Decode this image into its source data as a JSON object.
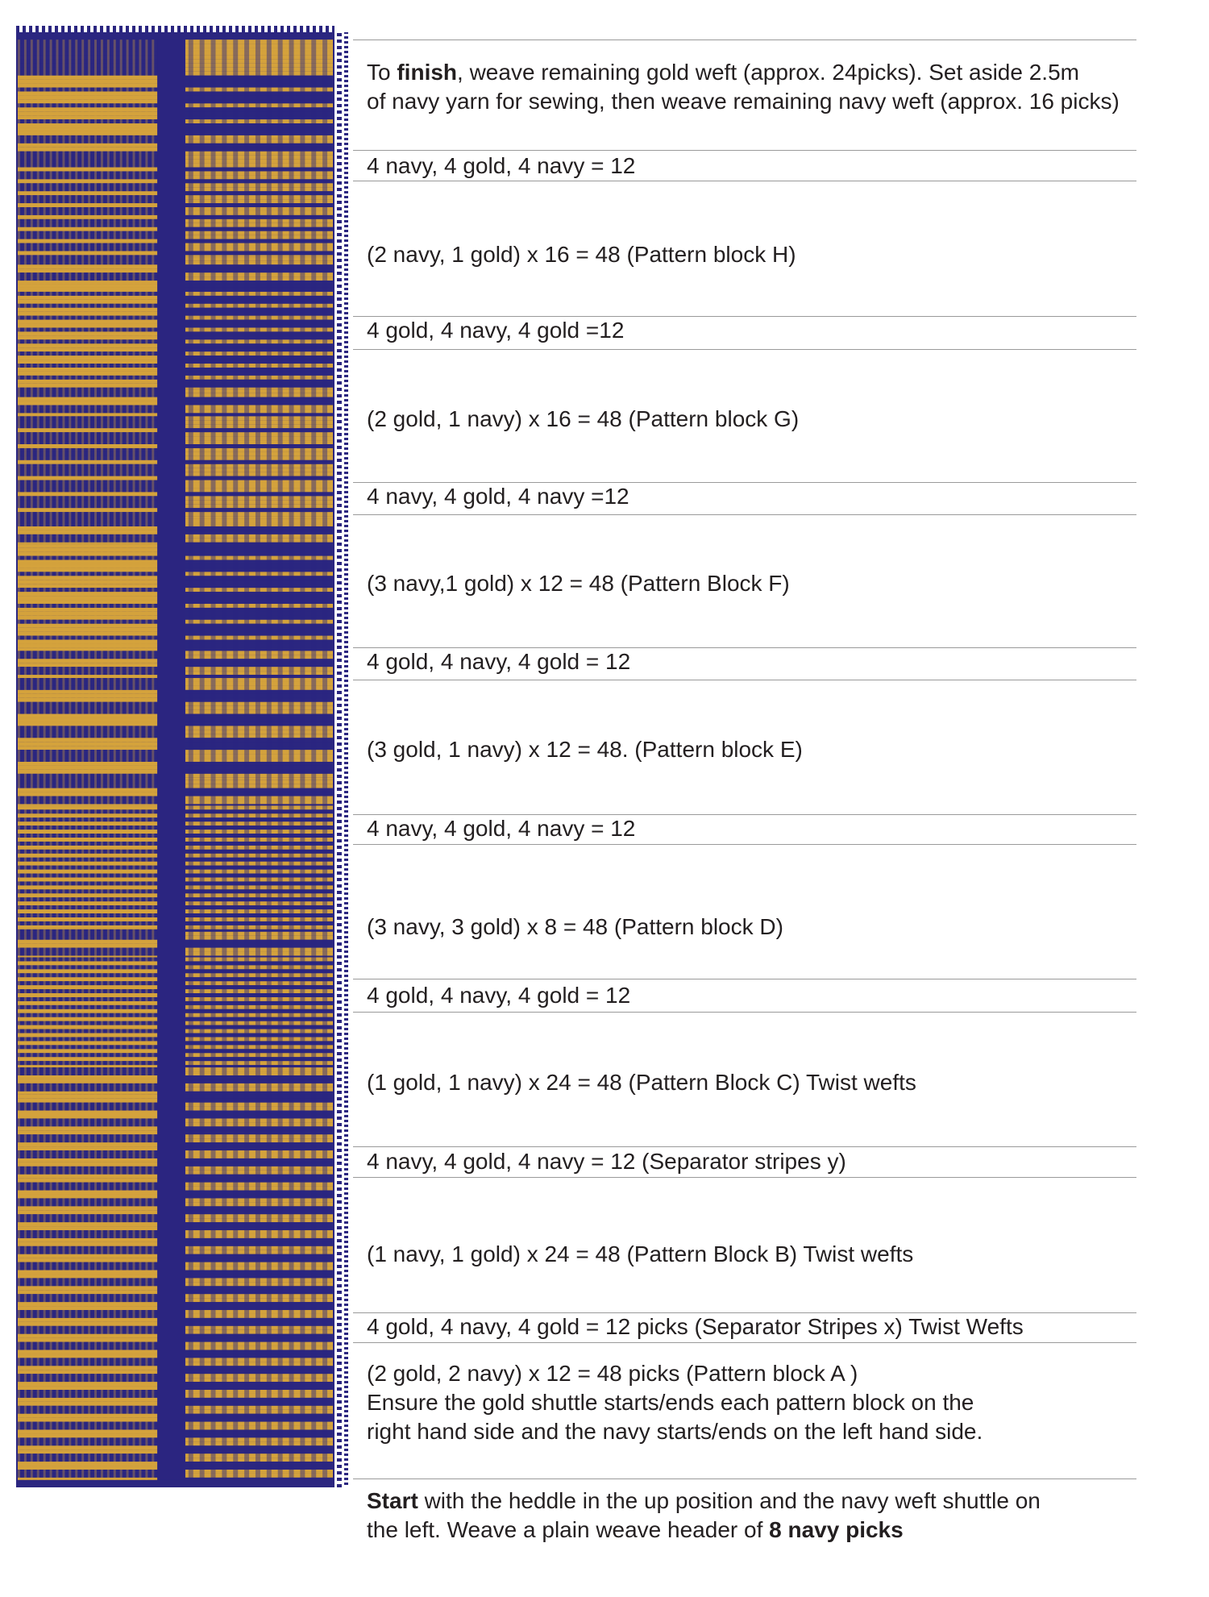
{
  "colors": {
    "navy": "#2b2680",
    "gold": "#d4a23c",
    "rule": "#9a9a9a"
  },
  "instructions": {
    "finish": {
      "prefix": "To ",
      "bold": "finish",
      "line1_rest": ", weave remaining gold weft (approx. 24picks). Set aside 2.5m",
      "line2": "of navy yarn for sewing, then weave remaining navy weft (approx. 16 picks)"
    },
    "rows": [
      {
        "text": "4 navy, 4 gold, 4 navy = 12"
      },
      {
        "text": "(2 navy, 1 gold) x 16 = 48  (Pattern block H)"
      },
      {
        "text": "4 gold, 4 navy, 4 gold =12"
      },
      {
        "text": "(2 gold, 1 navy) x 16 = 48 (Pattern block G)"
      },
      {
        "text": "4 navy, 4 gold, 4 navy =12"
      },
      {
        "text": "(3 navy,1 gold) x 12 = 48  (Pattern Block F)"
      },
      {
        "text": "4 gold, 4 navy, 4 gold = 12"
      },
      {
        "text": "(3 gold, 1 navy) x 12 = 48.  (Pattern block E)"
      },
      {
        "text": "4 navy, 4 gold, 4 navy = 12"
      },
      {
        "text": "(3 navy, 3 gold) x 8 = 48  (Pattern block D)"
      },
      {
        "text": "4 gold, 4 navy, 4 gold = 12"
      },
      {
        "text": "(1 gold, 1 navy) x 24 = 48  (Pattern Block C)  Twist wefts"
      },
      {
        "text": "4 navy, 4 gold, 4 navy = 12  (Separator stripes y)"
      },
      {
        "text": "(1 navy, 1 gold) x 24  = 48   (Pattern Block B)  Twist wefts"
      },
      {
        "text": "4 gold, 4 navy, 4 gold = 12 picks (Separator Stripes x) Twist Wefts"
      }
    ],
    "block_a": {
      "line1": "(2 gold, 2 navy) x 12 = 48 picks    (Pattern block A )",
      "line2": "Ensure the gold shuttle starts/ends each pattern block on the",
      "line3": "right hand side and the navy starts/ends on the left hand side."
    },
    "start": {
      "bold1": "Start",
      "line1_rest": " with the heddle in the up position and the navy weft shuttle on",
      "line2_pre": "the left. Weave a plain weave header of ",
      "bold2": "8 navy picks"
    }
  }
}
